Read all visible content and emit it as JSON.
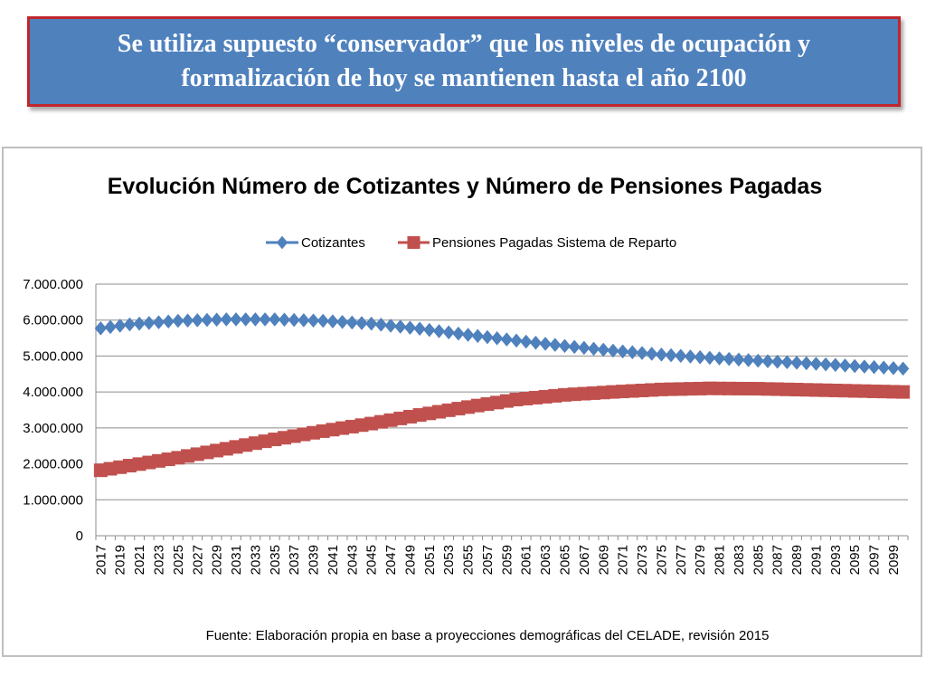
{
  "banner": {
    "line1": "Se utiliza supuesto “conservador” que los niveles de ocupación y",
    "line2": "formalización de hoy se mantienen hasta el año 2100"
  },
  "chart_data": {
    "type": "line",
    "title": "Evolución Número de Cotizantes y Número de Pensiones Pagadas",
    "source": "Fuente: Elaboración propia en base a proyecciones demográficas del CELADE, revisión 2015",
    "ylim": [
      0,
      7000000
    ],
    "yticks": [
      "0",
      "1.000.000",
      "2.000.000",
      "3.000.000",
      "4.000.000",
      "5.000.000",
      "6.000.000",
      "7.000.000"
    ],
    "x_start": 2017,
    "x_end": 2100,
    "x_tick_labels": [
      "2017",
      "2019",
      "2021",
      "2023",
      "2025",
      "2027",
      "2029",
      "2031",
      "2033",
      "2035",
      "2037",
      "2039",
      "2041",
      "2043",
      "2045",
      "2047",
      "2049",
      "2051",
      "2053",
      "2055",
      "2057",
      "2059",
      "2061",
      "2063",
      "2065",
      "2067",
      "2069",
      "2071",
      "2073",
      "2075",
      "2077",
      "2079",
      "2081",
      "2083",
      "2085",
      "2087",
      "2089",
      "2091",
      "2093",
      "2095",
      "2097",
      "2099"
    ],
    "grid": true,
    "legend_position": "top",
    "series": [
      {
        "name": "Cotizantes",
        "color": "#4f81bd",
        "marker": "diamond",
        "keypoints": [
          [
            2017,
            5770000
          ],
          [
            2020,
            5880000
          ],
          [
            2025,
            5980000
          ],
          [
            2030,
            6020000
          ],
          [
            2035,
            6020000
          ],
          [
            2040,
            5980000
          ],
          [
            2045,
            5900000
          ],
          [
            2050,
            5760000
          ],
          [
            2055,
            5590000
          ],
          [
            2060,
            5430000
          ],
          [
            2065,
            5280000
          ],
          [
            2070,
            5150000
          ],
          [
            2075,
            5040000
          ],
          [
            2080,
            4950000
          ],
          [
            2085,
            4870000
          ],
          [
            2090,
            4800000
          ],
          [
            2095,
            4720000
          ],
          [
            2100,
            4650000
          ]
        ]
      },
      {
        "name": "Pensiones Pagadas Sistema  de Reparto",
        "color": "#c0504d",
        "marker": "square",
        "keypoints": [
          [
            2017,
            1820000
          ],
          [
            2020,
            1950000
          ],
          [
            2025,
            2170000
          ],
          [
            2030,
            2420000
          ],
          [
            2035,
            2680000
          ],
          [
            2040,
            2910000
          ],
          [
            2045,
            3120000
          ],
          [
            2050,
            3360000
          ],
          [
            2055,
            3580000
          ],
          [
            2060,
            3790000
          ],
          [
            2065,
            3920000
          ],
          [
            2070,
            4000000
          ],
          [
            2075,
            4070000
          ],
          [
            2080,
            4100000
          ],
          [
            2085,
            4090000
          ],
          [
            2090,
            4060000
          ],
          [
            2095,
            4030000
          ],
          [
            2100,
            4000000
          ]
        ]
      }
    ]
  }
}
